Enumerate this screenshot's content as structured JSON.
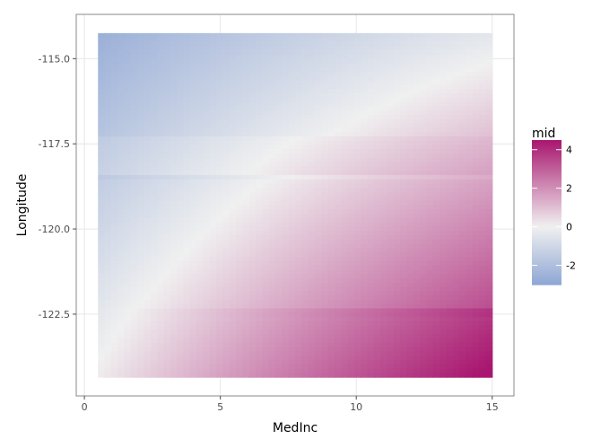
{
  "chart_data": {
    "type": "heatmap",
    "title": "",
    "xlabel": "MedInc",
    "ylabel": "Longitude",
    "xlim": [
      -0.3,
      15.8
    ],
    "ylim": [
      -124.9,
      -113.7
    ],
    "x_range": [
      0.5,
      15.0
    ],
    "y_range": [
      -124.35,
      -114.25
    ],
    "x_ticks": [
      0,
      5,
      10,
      15
    ],
    "x_tick_labels": [
      "0",
      "5",
      "10",
      "15"
    ],
    "y_ticks": [
      -115.0,
      -117.5,
      -120.0,
      -122.5
    ],
    "y_tick_labels": [
      "-115.0",
      "-117.5",
      "-120.0",
      "-122.5"
    ],
    "grid": true,
    "legend": {
      "title": "mid",
      "placement": "right",
      "range": [
        -3,
        4.5
      ],
      "breaks": [
        4,
        2,
        0,
        -2
      ],
      "break_labels": [
        "4",
        "2",
        "0",
        "-2"
      ]
    },
    "colors": {
      "low": "#8ea6d4",
      "mid": "#f0f0f0",
      "high": "#a8166f",
      "panel_border": "#888888",
      "grid": "#e6e6e6"
    },
    "fill_description": "mid increases with MedInc and is higher at more negative Longitude",
    "corner_values": {
      "low_medinc_high_longitude": -2.5,
      "high_medinc_high_longitude": 0.2,
      "low_medinc_low_longitude": 0.1,
      "high_medinc_low_longitude": 4.3
    }
  }
}
